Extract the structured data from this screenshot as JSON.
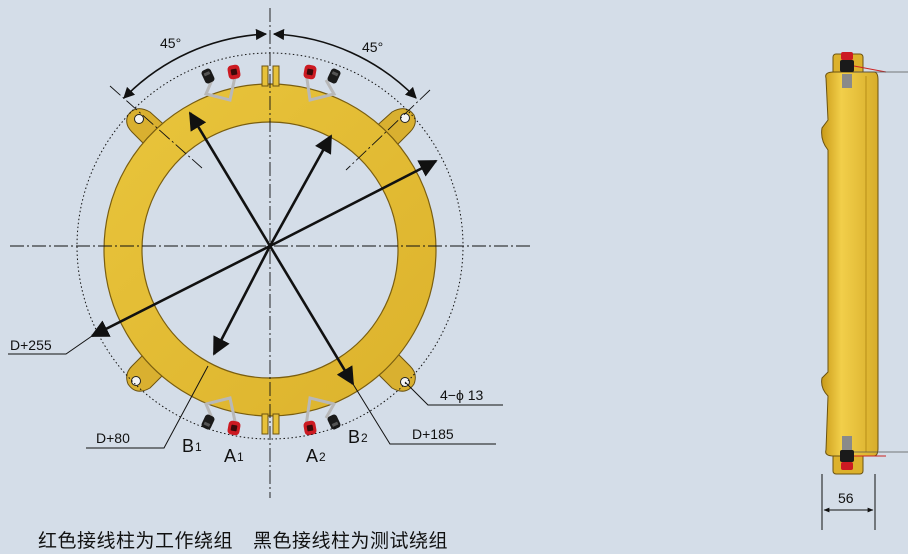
{
  "labels": {
    "angle_left": "45°",
    "angle_right": "45°",
    "dim_outer": "D+255",
    "dim_holes": "4−ϕ 13",
    "dim_inner": "D+80",
    "dim_mid": "D+185",
    "dim_width": "56",
    "b1_letter": "B",
    "b1_sub": "1",
    "a1_letter": "A",
    "a1_sub": "1",
    "a2_letter": "A",
    "a2_sub": "2",
    "b2_letter": "B",
    "b2_sub": "2"
  },
  "caption": {
    "red_note": "红色接线柱为工作绕组",
    "black_note": "黑色接线柱为测试绕组"
  },
  "colors": {
    "background": "#d4dde8",
    "ring_yellow": "#e8c23a",
    "ring_edge": "#8a6a12",
    "terminal_red": "#cc1a22",
    "terminal_black": "#1a1a1a",
    "lead_red": "#cc2222"
  }
}
